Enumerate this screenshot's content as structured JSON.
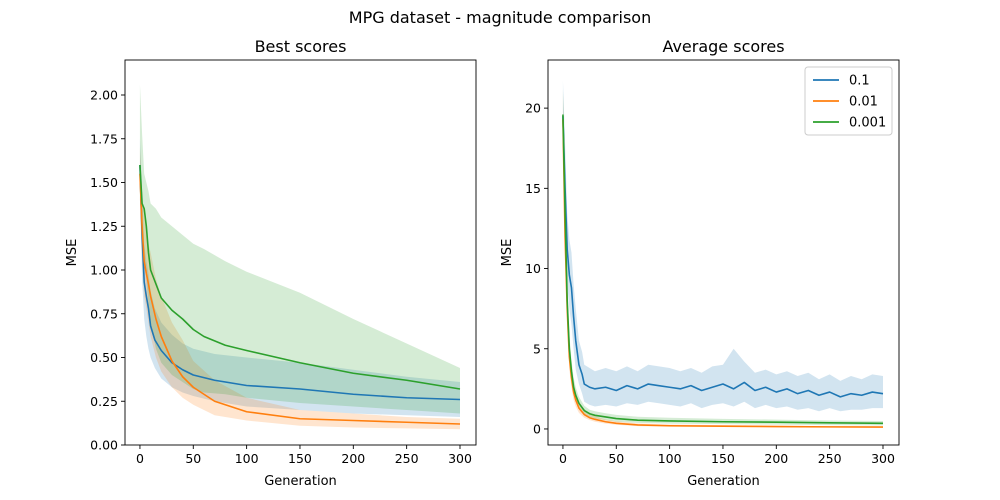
{
  "title": "MPG dataset - magnitude comparison",
  "colors": {
    "0.1": "#1f77b4",
    "0.01": "#ff7f0e",
    "0.001": "#2ca02c"
  },
  "chart_data": [
    {
      "type": "line",
      "title": "Best scores",
      "xlabel": "Generation",
      "ylabel": "MSE",
      "xlim": [
        -14,
        315
      ],
      "ylim": [
        0.0,
        2.2
      ],
      "xticks": [
        0,
        50,
        100,
        150,
        200,
        250,
        300
      ],
      "yticks": [
        0.0,
        0.25,
        0.5,
        0.75,
        1.0,
        1.25,
        1.5,
        1.75,
        2.0
      ],
      "ytick_labels": [
        "0.00",
        "0.25",
        "0.50",
        "0.75",
        "1.00",
        "1.25",
        "1.50",
        "1.75",
        "2.00"
      ],
      "legend": null,
      "series": [
        {
          "name": "0.1",
          "x": [
            0,
            2,
            4,
            6,
            8,
            10,
            14,
            20,
            30,
            40,
            50,
            70,
            100,
            150,
            200,
            250,
            300
          ],
          "y": [
            1.6,
            1.2,
            0.93,
            0.85,
            0.78,
            0.68,
            0.6,
            0.54,
            0.47,
            0.43,
            0.4,
            0.37,
            0.34,
            0.32,
            0.29,
            0.27,
            0.26
          ],
          "lower": [
            1.45,
            0.95,
            0.72,
            0.62,
            0.55,
            0.5,
            0.44,
            0.38,
            0.33,
            0.3,
            0.28,
            0.25,
            0.22,
            0.2,
            0.18,
            0.17,
            0.16
          ],
          "upper": [
            1.75,
            1.45,
            1.15,
            1.05,
            0.98,
            0.88,
            0.78,
            0.7,
            0.63,
            0.58,
            0.55,
            0.52,
            0.5,
            0.47,
            0.43,
            0.39,
            0.36
          ]
        },
        {
          "name": "0.01",
          "x": [
            0,
            2,
            4,
            6,
            8,
            10,
            15,
            20,
            30,
            40,
            50,
            70,
            100,
            150,
            200,
            250,
            300
          ],
          "y": [
            1.55,
            1.25,
            1.05,
            0.98,
            0.92,
            0.85,
            0.72,
            0.62,
            0.48,
            0.39,
            0.33,
            0.25,
            0.19,
            0.15,
            0.14,
            0.13,
            0.12
          ],
          "lower": [
            1.4,
            1.05,
            0.85,
            0.78,
            0.7,
            0.62,
            0.5,
            0.42,
            0.33,
            0.27,
            0.23,
            0.17,
            0.14,
            0.11,
            0.1,
            0.095,
            0.09
          ],
          "upper": [
            1.7,
            1.45,
            1.3,
            1.25,
            1.15,
            1.1,
            0.95,
            0.85,
            0.7,
            0.6,
            0.48,
            0.37,
            0.27,
            0.2,
            0.18,
            0.16,
            0.15
          ]
        },
        {
          "name": "0.001",
          "x": [
            0,
            2,
            4,
            6,
            8,
            10,
            15,
            20,
            30,
            40,
            50,
            60,
            80,
            100,
            150,
            200,
            250,
            300
          ],
          "y": [
            1.6,
            1.38,
            1.35,
            1.25,
            1.1,
            1.0,
            0.92,
            0.84,
            0.77,
            0.72,
            0.66,
            0.62,
            0.57,
            0.54,
            0.47,
            0.41,
            0.37,
            0.32
          ],
          "lower": [
            1.4,
            1.15,
            1.05,
            0.95,
            0.8,
            0.7,
            0.55,
            0.47,
            0.4,
            0.36,
            0.32,
            0.3,
            0.29,
            0.27,
            0.24,
            0.22,
            0.2,
            0.18
          ],
          "upper": [
            2.06,
            1.78,
            1.55,
            1.5,
            1.45,
            1.38,
            1.35,
            1.3,
            1.25,
            1.2,
            1.15,
            1.12,
            1.05,
            0.99,
            0.87,
            0.72,
            0.58,
            0.44
          ]
        }
      ]
    },
    {
      "type": "line",
      "title": "Average scores",
      "xlabel": "Generation",
      "ylabel": "MSE",
      "xlim": [
        -14,
        315
      ],
      "ylim": [
        -1.0,
        23.0
      ],
      "xticks": [
        0,
        50,
        100,
        150,
        200,
        250,
        300
      ],
      "yticks": [
        0,
        5,
        10,
        15,
        20
      ],
      "ytick_labels": [
        "0",
        "5",
        "10",
        "15",
        "20"
      ],
      "legend": "top-right",
      "series": [
        {
          "name": "0.1",
          "x": [
            0,
            2,
            4,
            6,
            8,
            10,
            12,
            15,
            18,
            20,
            25,
            30,
            40,
            50,
            60,
            70,
            80,
            90,
            100,
            110,
            120,
            130,
            140,
            150,
            160,
            170,
            180,
            190,
            200,
            210,
            220,
            230,
            240,
            250,
            260,
            270,
            280,
            290,
            300
          ],
          "y": [
            19.5,
            15.0,
            11.2,
            9.6,
            8.8,
            7.0,
            5.5,
            4.0,
            3.4,
            2.8,
            2.6,
            2.5,
            2.6,
            2.4,
            2.7,
            2.5,
            2.8,
            2.7,
            2.6,
            2.5,
            2.7,
            2.4,
            2.6,
            2.8,
            2.5,
            2.9,
            2.4,
            2.6,
            2.3,
            2.5,
            2.2,
            2.4,
            2.1,
            2.3,
            2.0,
            2.2,
            2.1,
            2.3,
            2.2
          ],
          "lower": [
            17.5,
            12.5,
            9.0,
            7.5,
            6.5,
            5.0,
            3.7,
            2.8,
            2.2,
            1.7,
            1.5,
            1.4,
            1.5,
            1.4,
            1.6,
            1.5,
            1.7,
            1.6,
            1.5,
            1.4,
            1.6,
            1.3,
            1.5,
            1.6,
            1.4,
            1.7,
            1.3,
            1.5,
            1.3,
            1.4,
            1.2,
            1.3,
            1.1,
            1.3,
            1.1,
            1.2,
            1.2,
            1.3,
            1.3
          ],
          "upper": [
            21.7,
            17.8,
            13.5,
            11.8,
            11.0,
            9.0,
            7.5,
            5.5,
            4.8,
            4.0,
            3.8,
            3.6,
            3.8,
            3.6,
            3.9,
            3.6,
            4.0,
            3.9,
            3.8,
            3.6,
            3.8,
            3.5,
            3.9,
            4.0,
            5.0,
            4.2,
            3.5,
            3.7,
            3.4,
            3.6,
            3.3,
            3.5,
            3.1,
            3.4,
            3.0,
            3.3,
            3.1,
            3.4,
            3.3
          ]
        },
        {
          "name": "0.01",
          "x": [
            0,
            2,
            4,
            6,
            8,
            10,
            12,
            15,
            20,
            25,
            30,
            40,
            50,
            70,
            100,
            150,
            200,
            250,
            300
          ],
          "y": [
            19.3,
            12.0,
            7.5,
            4.5,
            3.2,
            2.3,
            1.8,
            1.3,
            0.9,
            0.7,
            0.6,
            0.45,
            0.35,
            0.25,
            0.2,
            0.17,
            0.15,
            0.13,
            0.12
          ],
          "lower": [
            17.5,
            10.5,
            6.2,
            3.7,
            2.6,
            1.8,
            1.4,
            1.0,
            0.7,
            0.55,
            0.45,
            0.33,
            0.26,
            0.18,
            0.14,
            0.12,
            0.1,
            0.09,
            0.08
          ],
          "upper": [
            21.0,
            13.5,
            8.8,
            5.4,
            4.0,
            3.0,
            2.3,
            1.7,
            1.2,
            0.9,
            0.8,
            0.6,
            0.48,
            0.35,
            0.28,
            0.24,
            0.2,
            0.18,
            0.16
          ]
        },
        {
          "name": "0.001",
          "x": [
            0,
            2,
            4,
            6,
            8,
            10,
            12,
            15,
            20,
            25,
            30,
            40,
            50,
            70,
            100,
            150,
            200,
            250,
            300
          ],
          "y": [
            19.6,
            13.5,
            8.0,
            5.0,
            3.6,
            2.6,
            2.1,
            1.6,
            1.15,
            0.95,
            0.85,
            0.75,
            0.65,
            0.55,
            0.5,
            0.45,
            0.42,
            0.38,
            0.35
          ],
          "lower": [
            18.0,
            11.8,
            6.8,
            4.2,
            3.0,
            2.1,
            1.7,
            1.3,
            0.9,
            0.75,
            0.65,
            0.55,
            0.45,
            0.38,
            0.33,
            0.3,
            0.27,
            0.24,
            0.22
          ],
          "upper": [
            21.2,
            15.2,
            9.3,
            5.9,
            4.3,
            3.2,
            2.6,
            2.0,
            1.45,
            1.2,
            1.1,
            0.98,
            0.88,
            0.76,
            0.7,
            0.63,
            0.58,
            0.53,
            0.5
          ]
        }
      ]
    }
  ]
}
